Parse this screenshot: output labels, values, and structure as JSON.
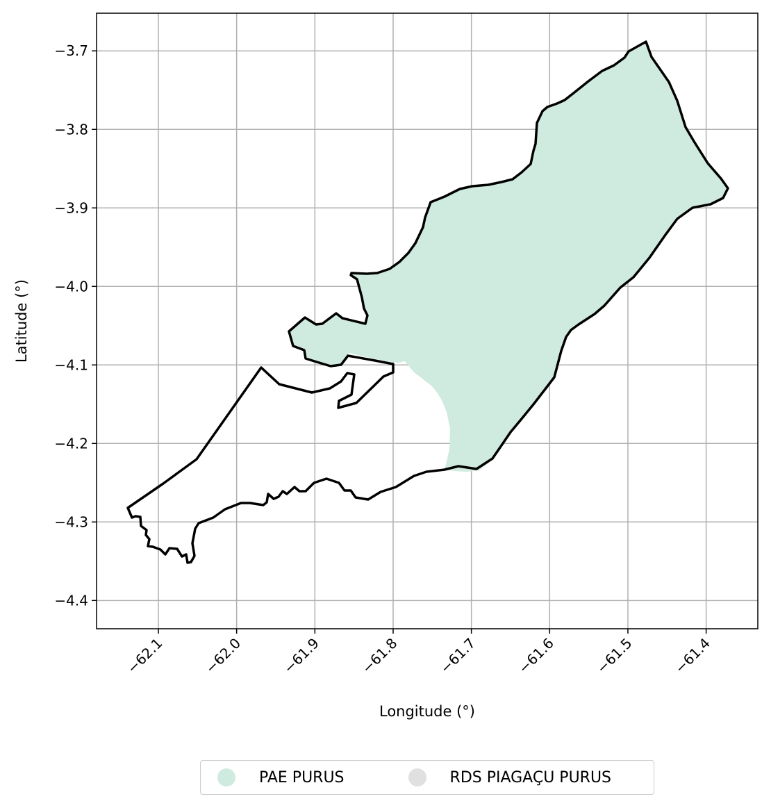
{
  "map": {
    "xlabel": "Longitude (°)",
    "ylabel": "Latitude (°)",
    "x_ticks": [
      "−62.1",
      "−62.0",
      "−61.9",
      "−61.8",
      "−61.7",
      "−61.6",
      "−61.5",
      "−61.4"
    ],
    "y_ticks": [
      "−3.7",
      "−3.8",
      "−3.9",
      "−4.0",
      "−4.1",
      "−4.2",
      "−4.3",
      "−4.4"
    ],
    "xlim": [
      -62.179,
      -61.334
    ],
    "ylim": [
      -4.436,
      -3.652
    ],
    "grid": true
  },
  "legend": {
    "placement": "bottom-center",
    "items": [
      {
        "label": "PAE PURUS",
        "color": "#cfeadf"
      },
      {
        "label": "RDS PIAGAÇU PURUS",
        "color": "#e0e0e0"
      }
    ]
  },
  "outline_color": "#000000"
}
